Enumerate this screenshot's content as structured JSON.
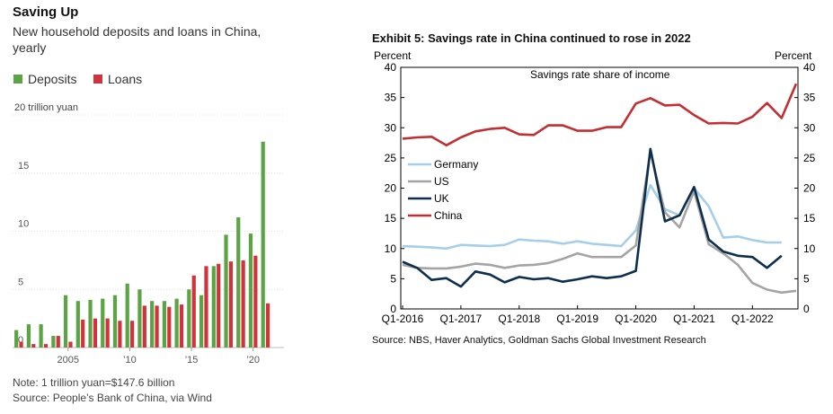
{
  "left": {
    "title": "Saving Up",
    "subtitle_line1": "New household deposits and loans in China,",
    "subtitle_line2": "yearly",
    "note": "Note: 1 trillion yuan=$147.6 billion",
    "source": "Source: People’s Bank of China, via Wind",
    "colors": {
      "deposits": "#5aa443",
      "loans": "#d0343a"
    }
  },
  "right": {
    "title": "Exhibit 5: Savings rate in China continued to rose in 2022",
    "source": "Source: NBS, Haver Analytics, Goldman Sachs Global Investment Research",
    "colors": {
      "Germany": "#a5cfe8",
      "US": "#a4a4a4",
      "UK": "#0d2f4c",
      "China": "#c22f33"
    }
  },
  "chart_data": [
    {
      "type": "bar",
      "title": "Saving Up",
      "ylabel": "20 trillion yuan",
      "ylim": [
        0,
        20
      ],
      "yticks": [
        "0",
        "5",
        "10",
        "15"
      ],
      "x_tick_labels": [
        {
          "year": 2005,
          "label": "2005"
        },
        {
          "year": 2010,
          "label": "’10"
        },
        {
          "year": 2015,
          "label": "’15"
        },
        {
          "year": 2020,
          "label": "’20"
        }
      ],
      "legend": [
        "Deposits",
        "Loans"
      ],
      "categories": [
        2001,
        2002,
        2003,
        2004,
        2005,
        2006,
        2007,
        2008,
        2009,
        2010,
        2011,
        2012,
        2013,
        2014,
        2015,
        2016,
        2017,
        2018,
        2019,
        2020,
        2021,
        2022
      ],
      "series": [
        {
          "name": "Deposits",
          "values": [
            1.5,
            2.0,
            2.0,
            1.0,
            4.5,
            4.0,
            4.1,
            4.2,
            4.5,
            5.5,
            5.0,
            4.0,
            4.0,
            4.2,
            5.0,
            4.5,
            7.0,
            9.7,
            11.2,
            9.8,
            17.7,
            0
          ]
        },
        {
          "name": "Loans",
          "values": [
            0.5,
            0.3,
            0.3,
            1.0,
            0.5,
            2.4,
            2.5,
            2.5,
            2.3,
            2.3,
            3.6,
            3.6,
            3.5,
            3.7,
            6.2,
            7.0,
            7.2,
            7.4,
            7.5,
            7.9,
            3.8,
            0
          ]
        }
      ]
    },
    {
      "type": "line",
      "title": "Savings rate share of income",
      "ylabel_left": "Percent",
      "ylabel_right": "Percent",
      "ylim": [
        0,
        40
      ],
      "yticks": [
        "0",
        "5",
        "10",
        "15",
        "20",
        "25",
        "30",
        "35",
        "40"
      ],
      "x_tick_labels": [
        "Q1-2016",
        "Q1-2017",
        "Q1-2018",
        "Q1-2019",
        "Q1-2020",
        "Q1-2021",
        "Q1-2022"
      ],
      "x_start": "Q1-2016",
      "series": [
        {
          "name": "Germany",
          "values": [
            10.4,
            10.3,
            10.2,
            10.0,
            10.6,
            10.5,
            10.4,
            10.6,
            11.5,
            11.3,
            11.2,
            10.8,
            11.2,
            10.8,
            10.6,
            10.4,
            13.0,
            20.5,
            16.5,
            15.5,
            20.0,
            17.0,
            11.8,
            12.0,
            11.4,
            11.0,
            11.0
          ]
        },
        {
          "name": "US",
          "values": [
            7.3,
            6.8,
            6.7,
            6.7,
            7.0,
            7.5,
            7.3,
            6.8,
            7.2,
            7.3,
            7.6,
            8.3,
            9.2,
            8.6,
            8.6,
            8.6,
            10.5,
            26.0,
            16.0,
            13.5,
            19.5,
            10.7,
            9.2,
            7.3,
            4.3,
            3.2,
            2.7,
            3.0
          ]
        },
        {
          "name": "UK",
          "values": [
            7.8,
            6.8,
            4.8,
            5.1,
            3.7,
            6.2,
            5.7,
            4.4,
            5.3,
            4.9,
            5.1,
            4.5,
            4.9,
            5.4,
            5.1,
            5.4,
            6.3,
            26.5,
            14.5,
            15.5,
            20.2,
            11.5,
            9.5,
            8.8,
            8.6,
            6.8,
            8.8
          ]
        },
        {
          "name": "China",
          "values": [
            28.2,
            28.4,
            28.5,
            27.1,
            28.4,
            29.4,
            29.8,
            30.0,
            28.9,
            28.8,
            30.4,
            30.4,
            29.5,
            29.5,
            30.1,
            30.1,
            34.0,
            34.9,
            33.7,
            33.8,
            32.1,
            30.7,
            30.8,
            30.7,
            31.8,
            34.1,
            31.6,
            37.3
          ]
        }
      ]
    }
  ]
}
